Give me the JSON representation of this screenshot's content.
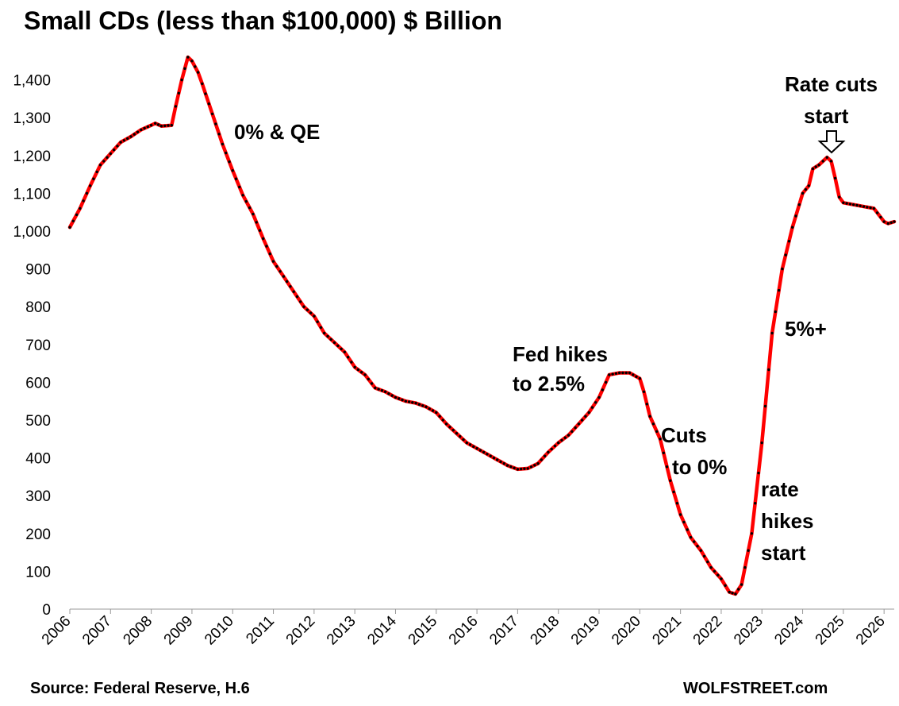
{
  "chart_data": {
    "type": "line",
    "title": "Small CDs (less than $100,000) $ Billion",
    "xlabel": "",
    "ylabel": "",
    "ylim": [
      0,
      1500
    ],
    "xlim": [
      2006,
      2026.25
    ],
    "grid": false,
    "legend": "none",
    "y_ticks": [
      "0",
      "100",
      "200",
      "300",
      "400",
      "500",
      "600",
      "700",
      "800",
      "900",
      "1,000",
      "1,100",
      "1,200",
      "1,300",
      "1,400"
    ],
    "x_ticks": [
      "2006",
      "2007",
      "2008",
      "2009",
      "2010",
      "2011",
      "2012",
      "2013",
      "2014",
      "2015",
      "2016",
      "2017",
      "2018",
      "2019",
      "2020",
      "2021",
      "2022",
      "2023",
      "2024",
      "2025",
      "2026"
    ],
    "series": [
      {
        "color": "#ff0000",
        "marker_color": "#000000",
        "x": [
          2006.0,
          2006.25,
          2006.5,
          2006.75,
          2007.0,
          2007.25,
          2007.5,
          2007.75,
          2008.0,
          2008.1,
          2008.25,
          2008.5,
          2008.6,
          2008.75,
          2008.9,
          2009.0,
          2009.15,
          2009.25,
          2009.5,
          2009.75,
          2010.0,
          2010.25,
          2010.5,
          2010.75,
          2011.0,
          2011.25,
          2011.5,
          2011.75,
          2012.0,
          2012.25,
          2012.5,
          2012.75,
          2013.0,
          2013.25,
          2013.5,
          2013.75,
          2014.0,
          2014.25,
          2014.5,
          2014.75,
          2015.0,
          2015.25,
          2015.5,
          2015.75,
          2016.0,
          2016.25,
          2016.5,
          2016.75,
          2017.0,
          2017.25,
          2017.5,
          2017.75,
          2018.0,
          2018.25,
          2018.5,
          2018.75,
          2019.0,
          2019.25,
          2019.5,
          2019.75,
          2020.0,
          2020.1,
          2020.25,
          2020.5,
          2020.75,
          2021.0,
          2021.25,
          2021.5,
          2021.75,
          2022.0,
          2022.2,
          2022.35,
          2022.5,
          2022.75,
          2023.0,
          2023.25,
          2023.5,
          2023.75,
          2024.0,
          2024.15,
          2024.25,
          2024.4,
          2024.6,
          2024.7,
          2024.8,
          2024.9,
          2025.0,
          2025.25,
          2025.5,
          2025.75,
          2026.0,
          2026.1,
          2026.25
        ],
        "values": [
          1010,
          1060,
          1120,
          1175,
          1205,
          1235,
          1250,
          1268,
          1280,
          1285,
          1278,
          1280,
          1330,
          1400,
          1460,
          1450,
          1420,
          1390,
          1310,
          1230,
          1160,
          1095,
          1045,
          980,
          920,
          880,
          840,
          800,
          775,
          730,
          705,
          680,
          640,
          620,
          585,
          575,
          560,
          550,
          545,
          535,
          520,
          490,
          465,
          440,
          425,
          410,
          395,
          380,
          370,
          372,
          385,
          415,
          440,
          460,
          490,
          520,
          560,
          620,
          625,
          625,
          610,
          575,
          510,
          450,
          340,
          250,
          190,
          155,
          110,
          80,
          45,
          40,
          65,
          200,
          440,
          730,
          900,
          1010,
          1100,
          1120,
          1165,
          1175,
          1195,
          1185,
          1140,
          1090,
          1075,
          1070,
          1065,
          1060,
          1025,
          1020,
          1025
        ]
      }
    ],
    "annotations": [
      {
        "lines": [
          "0% & QE"
        ]
      },
      {
        "lines": [
          "Fed hikes",
          "to 2.5%"
        ]
      },
      {
        "lines": [
          "Cuts",
          "to 0%"
        ]
      },
      {
        "lines": [
          "rate",
          "hikes",
          "start"
        ]
      },
      {
        "lines": [
          "5%+"
        ]
      },
      {
        "lines": [
          "Rate cuts",
          "start"
        ]
      }
    ]
  },
  "footer": {
    "source": "Source: Federal Reserve, H.6",
    "brand": "WOLFSTREET.com"
  }
}
